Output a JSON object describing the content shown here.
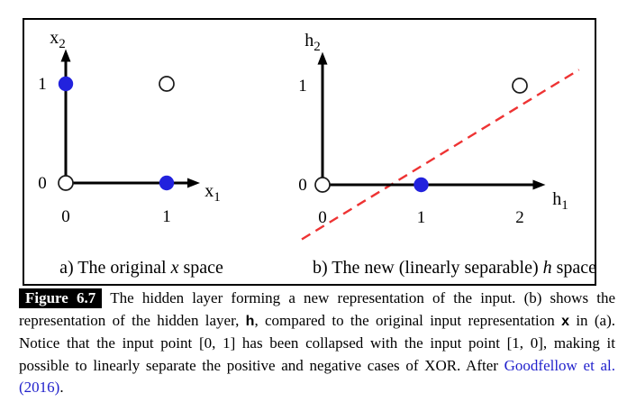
{
  "figure": {
    "label": "Figure 6.7",
    "subcaption_a": {
      "prefix": "a) The original ",
      "var": "x",
      "suffix": " space"
    },
    "subcaption_b": {
      "prefix": "b) The new (linearly separable) ",
      "var": "h",
      "suffix": " space"
    },
    "caption": {
      "part1": "The hidden layer forming a new representation of the input.  (b) shows the representation of the hidden layer, ",
      "vec_h": "h",
      "part2": ", compared to the original input representation ",
      "vec_x": "x",
      "part3": " in (a). Notice that the input point [0, 1] has been collapsed with the input point [1, 0], making it possible to linearly separate the positive and negative cases of XOR. After ",
      "link1": "Goodfellow et al.",
      "part4": " ",
      "link2": "(2016)",
      "part5": "."
    }
  },
  "colors": {
    "point_fill_blue": "#2222dd",
    "open_circle_stroke": "#1a1a1a",
    "boundary_red": "#ee3333",
    "axis_black": "#000000",
    "link_blue": "#2222cc"
  },
  "chart_data": [
    {
      "id": "x-space",
      "type": "scatter",
      "title": "a) The original x space",
      "xlabel_base": "x",
      "xlabel_sub": "1",
      "ylabel_base": "x",
      "ylabel_sub": "2",
      "x_ticks": [
        {
          "v": 0,
          "label": "0"
        },
        {
          "v": 1,
          "label": "1"
        }
      ],
      "y_ticks": [
        {
          "v": 0,
          "label": "0"
        },
        {
          "v": 1,
          "label": "1"
        }
      ],
      "xlim": [
        0,
        1.33
      ],
      "ylim": [
        0,
        1.35
      ],
      "series": [
        {
          "name": "positive-case",
          "marker": "filled-blue",
          "points": [
            [
              0,
              1
            ],
            [
              1,
              0
            ]
          ]
        },
        {
          "name": "negative-case",
          "marker": "open",
          "points": [
            [
              0,
              0
            ],
            [
              1,
              1
            ]
          ]
        }
      ]
    },
    {
      "id": "h-space",
      "type": "scatter",
      "title": "b) The new (linearly separable) h space",
      "xlabel_base": "h",
      "xlabel_sub": "1",
      "ylabel_base": "h",
      "ylabel_sub": "2",
      "x_ticks": [
        {
          "v": 0,
          "label": "0"
        },
        {
          "v": 1,
          "label": "1"
        },
        {
          "v": 2,
          "label": "2"
        }
      ],
      "y_ticks": [
        {
          "v": 0,
          "label": "0"
        },
        {
          "v": 1,
          "label": "1"
        }
      ],
      "xlim": [
        0,
        2.26
      ],
      "ylim": [
        0,
        1.34
      ],
      "series": [
        {
          "name": "positive-case",
          "marker": "filled-blue",
          "points": [
            [
              1,
              0
            ]
          ]
        },
        {
          "name": "negative-case",
          "marker": "open",
          "points": [
            [
              0,
              0
            ],
            [
              2,
              1
            ]
          ]
        }
      ],
      "decision_boundary": {
        "style": "dashed",
        "from": [
          -0.21,
          -0.55
        ],
        "to": [
          2.6,
          1.16
        ]
      }
    }
  ]
}
